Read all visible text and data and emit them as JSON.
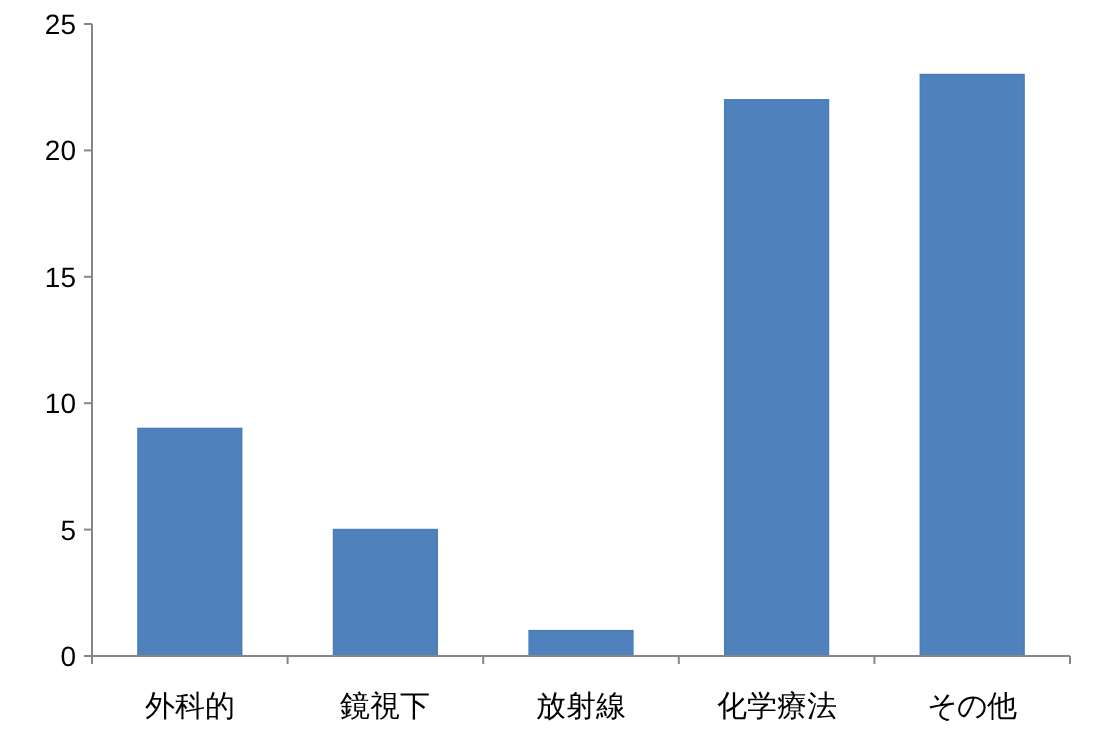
{
  "chart_data": {
    "type": "bar",
    "categories": [
      "外科的",
      "鏡視下",
      "放射線",
      "化学療法",
      "その他"
    ],
    "values": [
      9,
      5,
      1,
      22,
      23
    ],
    "color": "#4f81bd",
    "ylim": [
      0,
      25
    ],
    "yticks": [
      0,
      5,
      10,
      15,
      20,
      25
    ],
    "grid": false
  }
}
